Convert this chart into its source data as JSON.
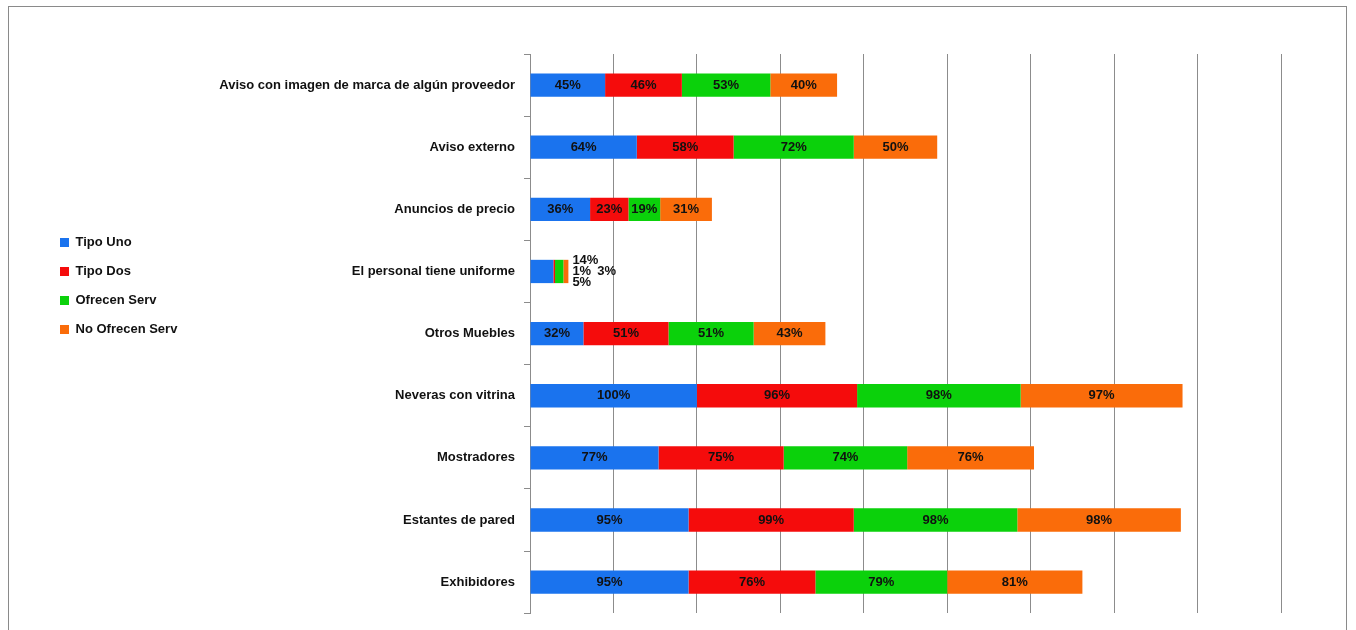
{
  "chart_data": {
    "type": "bar",
    "orientation": "horizontal",
    "stacked": true,
    "categories": [
      "Aviso con imagen de marca de algún proveedor",
      "Aviso externo",
      "Anuncios de precio",
      "El personal tiene uniforme",
      "Otros Muebles",
      "Neveras con vitrina",
      "Mostradores",
      "Estantes de pared",
      "Exhibidores"
    ],
    "series": [
      {
        "name": "Tipo Uno",
        "color": "#1a73ee",
        "values": [
          45,
          64,
          36,
          14,
          32,
          100,
          77,
          95,
          95
        ],
        "value_labels": [
          "45%",
          "64%",
          "36%",
          "14%",
          "32%",
          "100%",
          "77%",
          "95%",
          "95%"
        ]
      },
      {
        "name": "Tipo Dos",
        "color": "#f50c0c",
        "values": [
          46,
          58,
          23,
          1,
          51,
          96,
          75,
          99,
          76
        ],
        "value_labels": [
          "46%",
          "58%",
          "23%",
          "1%",
          "51%",
          "96%",
          "75%",
          "99%",
          "76%"
        ]
      },
      {
        "name": "Ofrecen Serv",
        "color": "#0bd10b",
        "values": [
          53,
          72,
          19,
          5,
          51,
          98,
          74,
          98,
          79
        ],
        "value_labels": [
          "53%",
          "72%",
          "19%",
          "5%",
          "51%",
          "98%",
          "74%",
          "98%",
          "79%"
        ]
      },
      {
        "name": "No Ofrecen Serv",
        "color": "#fa6c0a",
        "values": [
          40,
          50,
          31,
          3,
          43,
          97,
          76,
          98,
          81
        ],
        "value_labels": [
          "40%",
          "50%",
          "31%",
          "3%",
          "43%",
          "97%",
          "76%",
          "98%",
          "81%"
        ]
      }
    ],
    "xlim": [
      0,
      450
    ],
    "xticks": [
      {
        "value": 0,
        "label": null
      },
      {
        "value": 50,
        "label": null
      },
      {
        "value": 100,
        "label": null
      },
      {
        "value": 150,
        "label": null
      },
      {
        "value": 200,
        "label": null
      },
      {
        "value": 250,
        "label": null
      },
      {
        "value": 300,
        "label": null
      },
      {
        "value": 350,
        "label": null
      },
      {
        "value": 400,
        "label": null
      },
      {
        "value": 450,
        "label": null
      }
    ],
    "grid": "x",
    "legend": "left",
    "tick_labels": "y"
  }
}
